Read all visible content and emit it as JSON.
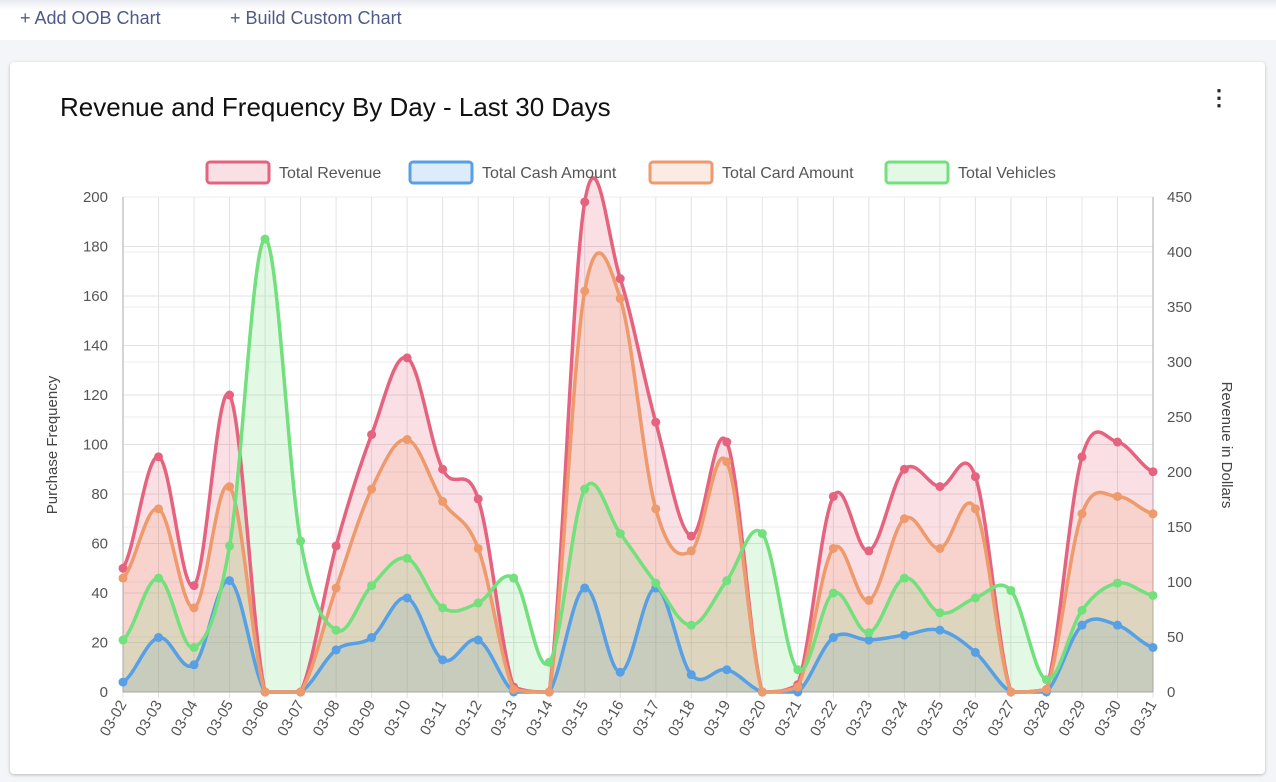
{
  "toolbar": {
    "add_oob": "+ Add OOB Chart",
    "build_custom": "+ Build Custom Chart"
  },
  "card": {
    "title": "Revenue and Frequency By Day - Last 30 Days",
    "menu_icon": "kebab-vertical-icon"
  },
  "chart_data": {
    "type": "area",
    "title": "Revenue and Frequency By Day - Last 30 Days",
    "xlabel": "",
    "ylabel": "Purchase Frequency",
    "y2label": "Revenue in Dollars",
    "ylim": [
      0,
      200
    ],
    "y2lim": [
      0,
      450
    ],
    "yticks": [
      "0",
      "20",
      "40",
      "60",
      "80",
      "100",
      "120",
      "140",
      "160",
      "180",
      "200"
    ],
    "y2ticks": [
      "0",
      "50",
      "100",
      "150",
      "200",
      "250",
      "300",
      "350",
      "400",
      "450"
    ],
    "grid": true,
    "legend_position": "top",
    "smooth": true,
    "categories": [
      "03-02",
      "03-03",
      "03-04",
      "03-05",
      "03-06",
      "03-07",
      "03-08",
      "03-09",
      "03-10",
      "03-11",
      "03-12",
      "03-13",
      "03-14",
      "03-15",
      "03-16",
      "03-17",
      "03-18",
      "03-19",
      "03-20",
      "03-21",
      "03-22",
      "03-23",
      "03-24",
      "03-25",
      "03-26",
      "03-27",
      "03-28",
      "03-29",
      "03-30",
      "03-31"
    ],
    "series": [
      {
        "name": "Total Revenue",
        "color": "#e5637e",
        "values": [
          50,
          95,
          43,
          120,
          0,
          0,
          59,
          104,
          135,
          90,
          78,
          2,
          0,
          198,
          167,
          109,
          63,
          101,
          0,
          3,
          79,
          57,
          90,
          83,
          87,
          0,
          1,
          95,
          101,
          89
        ]
      },
      {
        "name": "Total Cash Amount",
        "color": "#57a0e5",
        "values": [
          4,
          22,
          11,
          45,
          0,
          0,
          17,
          22,
          38,
          13,
          21,
          0,
          0,
          42,
          8,
          42,
          7,
          9,
          0,
          0,
          22,
          21,
          23,
          25,
          16,
          0,
          0,
          27,
          27,
          18
        ]
      },
      {
        "name": "Total Card Amount",
        "color": "#ee9a6c",
        "values": [
          46,
          74,
          34,
          83,
          0,
          0,
          42,
          82,
          102,
          77,
          58,
          1,
          0,
          162,
          159,
          74,
          57,
          93,
          0,
          2,
          58,
          37,
          70,
          58,
          74,
          0,
          1,
          72,
          79,
          72
        ]
      },
      {
        "name": "Total Vehicles",
        "color": "#72e07c",
        "values": [
          21,
          46,
          18,
          59,
          183,
          61,
          25,
          43,
          54,
          34,
          36,
          46,
          12,
          82,
          64,
          44,
          27,
          45,
          64,
          9,
          40,
          24,
          46,
          32,
          38,
          41,
          5,
          33,
          44,
          39
        ]
      }
    ]
  }
}
